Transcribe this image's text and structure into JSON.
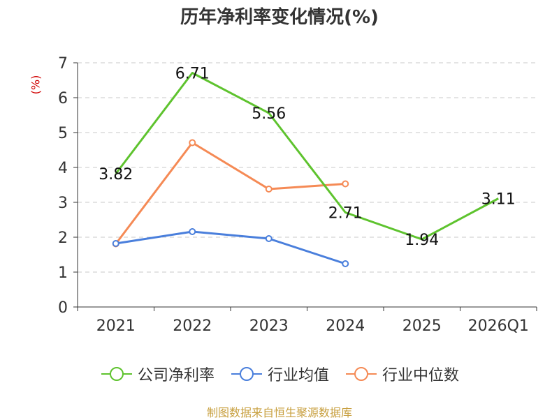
{
  "chart_data": {
    "type": "line",
    "title": "历年净利率变化情况(%)",
    "ylabel": "(%)",
    "xlabel": "",
    "categories": [
      "2021",
      "2022",
      "2023",
      "2024",
      "2025",
      "2026Q1"
    ],
    "ylim": [
      0,
      7
    ],
    "yticks": [
      "0",
      "1",
      "2",
      "3",
      "4",
      "5",
      "6",
      "7"
    ],
    "grid": true,
    "legend_position": "bottom",
    "series": [
      {
        "name": "公司净利率",
        "color": "#5ec32e",
        "values": [
          3.82,
          6.71,
          5.56,
          2.71,
          1.94,
          3.11
        ],
        "labels": [
          "3.82",
          "6.71",
          "5.56",
          "2.71",
          "1.94",
          "3.11"
        ],
        "show_markers": false
      },
      {
        "name": "行业均值",
        "color": "#4a7fdc",
        "values": [
          1.82,
          2.16,
          1.96,
          1.24,
          null,
          null
        ],
        "show_markers": true
      },
      {
        "name": "行业中位数",
        "color": "#f58a55",
        "values": [
          1.81,
          4.71,
          3.38,
          3.53,
          null,
          null
        ],
        "show_markers": true
      }
    ]
  },
  "source": "制图数据来自恒生聚源数据库"
}
